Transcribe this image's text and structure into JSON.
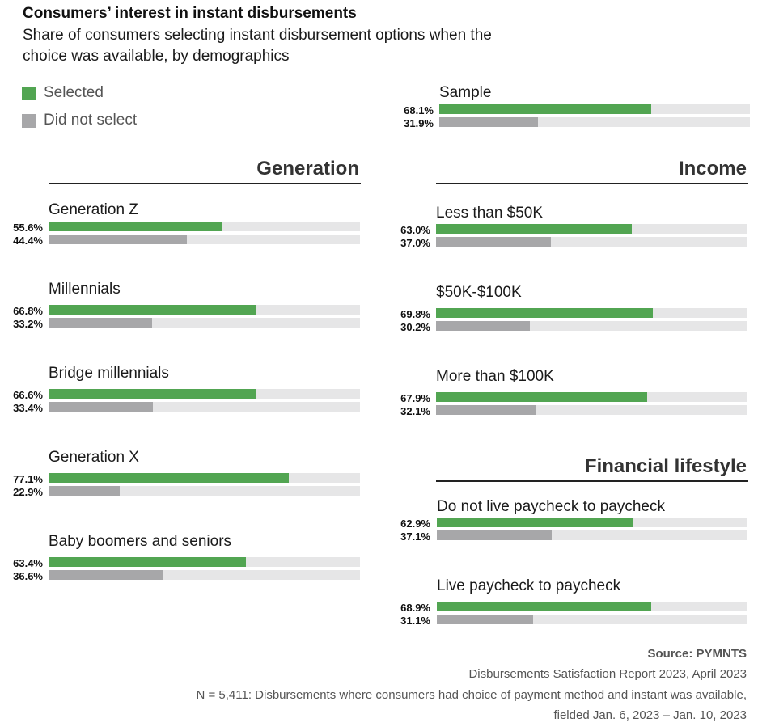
{
  "chart_data": {
    "type": "bar",
    "title": "Consumers’ interest in instant disbursements",
    "subtitle": "Share of consumers selecting instant disbursement options when the choice was available, by demographics",
    "legend": [
      {
        "name": "Selected",
        "color": "#52a552"
      },
      {
        "name": "Did not select",
        "color": "#a7a7a9"
      }
    ],
    "xlim": [
      0,
      100
    ],
    "orientation": "horizontal",
    "sample": {
      "label": "Sample",
      "selected": 68.1,
      "not_selected": 31.9,
      "selected_label": "68.1%",
      "not_selected_label": "31.9%"
    },
    "sections": [
      {
        "title": "Generation",
        "groups": [
          {
            "label": "Generation Z",
            "selected": 55.6,
            "not_selected": 44.4,
            "selected_label": "55.6%",
            "not_selected_label": "44.4%"
          },
          {
            "label": "Millennials",
            "selected": 66.8,
            "not_selected": 33.2,
            "selected_label": "66.8%",
            "not_selected_label": "33.2%"
          },
          {
            "label": "Bridge millennials",
            "selected": 66.6,
            "not_selected": 33.4,
            "selected_label": "66.6%",
            "not_selected_label": "33.4%"
          },
          {
            "label": "Generation X",
            "selected": 77.1,
            "not_selected": 22.9,
            "selected_label": "77.1%",
            "not_selected_label": "22.9%"
          },
          {
            "label": "Baby boomers and seniors",
            "selected": 63.4,
            "not_selected": 36.6,
            "selected_label": "63.4%",
            "not_selected_label": "36.6%"
          }
        ]
      },
      {
        "title": "Income",
        "groups": [
          {
            "label": "Less than $50K",
            "selected": 63.0,
            "not_selected": 37.0,
            "selected_label": "63.0%",
            "not_selected_label": "37.0%"
          },
          {
            "label": "$50K-$100K",
            "selected": 69.8,
            "not_selected": 30.2,
            "selected_label": "69.8%",
            "not_selected_label": "30.2%"
          },
          {
            "label": "More than $100K",
            "selected": 67.9,
            "not_selected": 32.1,
            "selected_label": "67.9%",
            "not_selected_label": "32.1%"
          }
        ]
      },
      {
        "title": "Financial lifestyle",
        "groups": [
          {
            "label": "Do not live paycheck to paycheck",
            "selected": 62.9,
            "not_selected": 37.1,
            "selected_label": "62.9%",
            "not_selected_label": "37.1%"
          },
          {
            "label": "Live paycheck to paycheck",
            "selected": 68.9,
            "not_selected": 31.1,
            "selected_label": "68.9%",
            "not_selected_label": "31.1%"
          }
        ]
      }
    ]
  },
  "source": {
    "line1": "Source: PYMNTS",
    "line2": "Disbursements Satisfaction Report 2023, April 2023",
    "line3": "N = 5,411: Disbursements where consumers had choice of payment method and instant was available,",
    "line4": "fielded Jan. 6, 2023 – Jan. 10, 2023"
  }
}
